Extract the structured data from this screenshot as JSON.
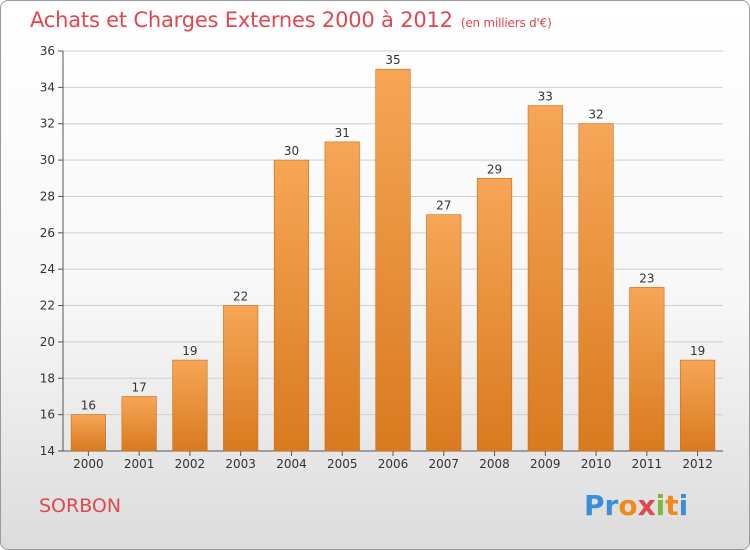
{
  "header": {
    "title": "Achats et Charges Externes 2000 à 2012",
    "unit": "(en milliers d'€)"
  },
  "footer": {
    "commune": "SORBON",
    "logo": {
      "letters": [
        "P",
        "r",
        "o",
        "x",
        "i",
        "t",
        "i"
      ],
      "colors": [
        "#3b8fd8",
        "#3b8fd8",
        "#f08a1e",
        "#e0474f",
        "#7cb73f",
        "#f08a1e",
        "#3b8fd8"
      ]
    }
  },
  "colors": {
    "bar_light": "#f6a657",
    "bar_dark": "#d97a1f",
    "grid": "#cfcfcf",
    "axis": "#555555",
    "title": "#e0474f"
  },
  "chart_data": {
    "type": "bar",
    "categories": [
      "2000",
      "2001",
      "2002",
      "2003",
      "2004",
      "2005",
      "2006",
      "2007",
      "2008",
      "2009",
      "2010",
      "2011",
      "2012"
    ],
    "values": [
      16,
      17,
      19,
      22,
      30,
      31,
      35,
      27,
      29,
      33,
      32,
      23,
      19
    ],
    "title": "Achats et Charges Externes 2000 à 2012",
    "xlabel": "",
    "ylabel": "",
    "ylim": [
      14,
      36
    ],
    "yticks": [
      14,
      16,
      18,
      20,
      22,
      24,
      26,
      28,
      30,
      32,
      34,
      36
    ],
    "grid": true,
    "legend": "none"
  }
}
